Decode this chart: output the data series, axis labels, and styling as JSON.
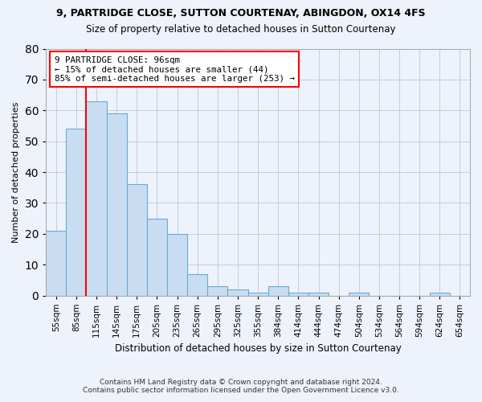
{
  "title": "9, PARTRIDGE CLOSE, SUTTON COURTENAY, ABINGDON, OX14 4FS",
  "subtitle": "Size of property relative to detached houses in Sutton Courtenay",
  "xlabel": "Distribution of detached houses by size in Sutton Courtenay",
  "ylabel": "Number of detached properties",
  "footer1": "Contains HM Land Registry data © Crown copyright and database right 2024.",
  "footer2": "Contains public sector information licensed under the Open Government Licence v3.0.",
  "categories": [
    "55sqm",
    "85sqm",
    "115sqm",
    "145sqm",
    "175sqm",
    "205sqm",
    "235sqm",
    "265sqm",
    "295sqm",
    "325sqm",
    "355sqm",
    "384sqm",
    "414sqm",
    "444sqm",
    "474sqm",
    "504sqm",
    "534sqm",
    "564sqm",
    "594sqm",
    "624sqm",
    "654sqm"
  ],
  "bar_values": [
    21,
    54,
    63,
    59,
    36,
    25,
    20,
    7,
    3,
    2,
    1,
    3,
    1,
    1,
    0,
    1,
    0,
    0,
    0,
    1,
    0
  ],
  "bar_color": "#c9ddf2",
  "bar_edge_color": "#6aaad4",
  "ylim": [
    0,
    80
  ],
  "yticks": [
    0,
    10,
    20,
    30,
    40,
    50,
    60,
    70,
    80
  ],
  "red_line_x": 1.5,
  "annotation_title": "9 PARTRIDGE CLOSE: 96sqm",
  "annotation_line1": "← 15% of detached houses are smaller (44)",
  "annotation_line2": "85% of semi-detached houses are larger (253) →",
  "background_color": "#eef2fb"
}
